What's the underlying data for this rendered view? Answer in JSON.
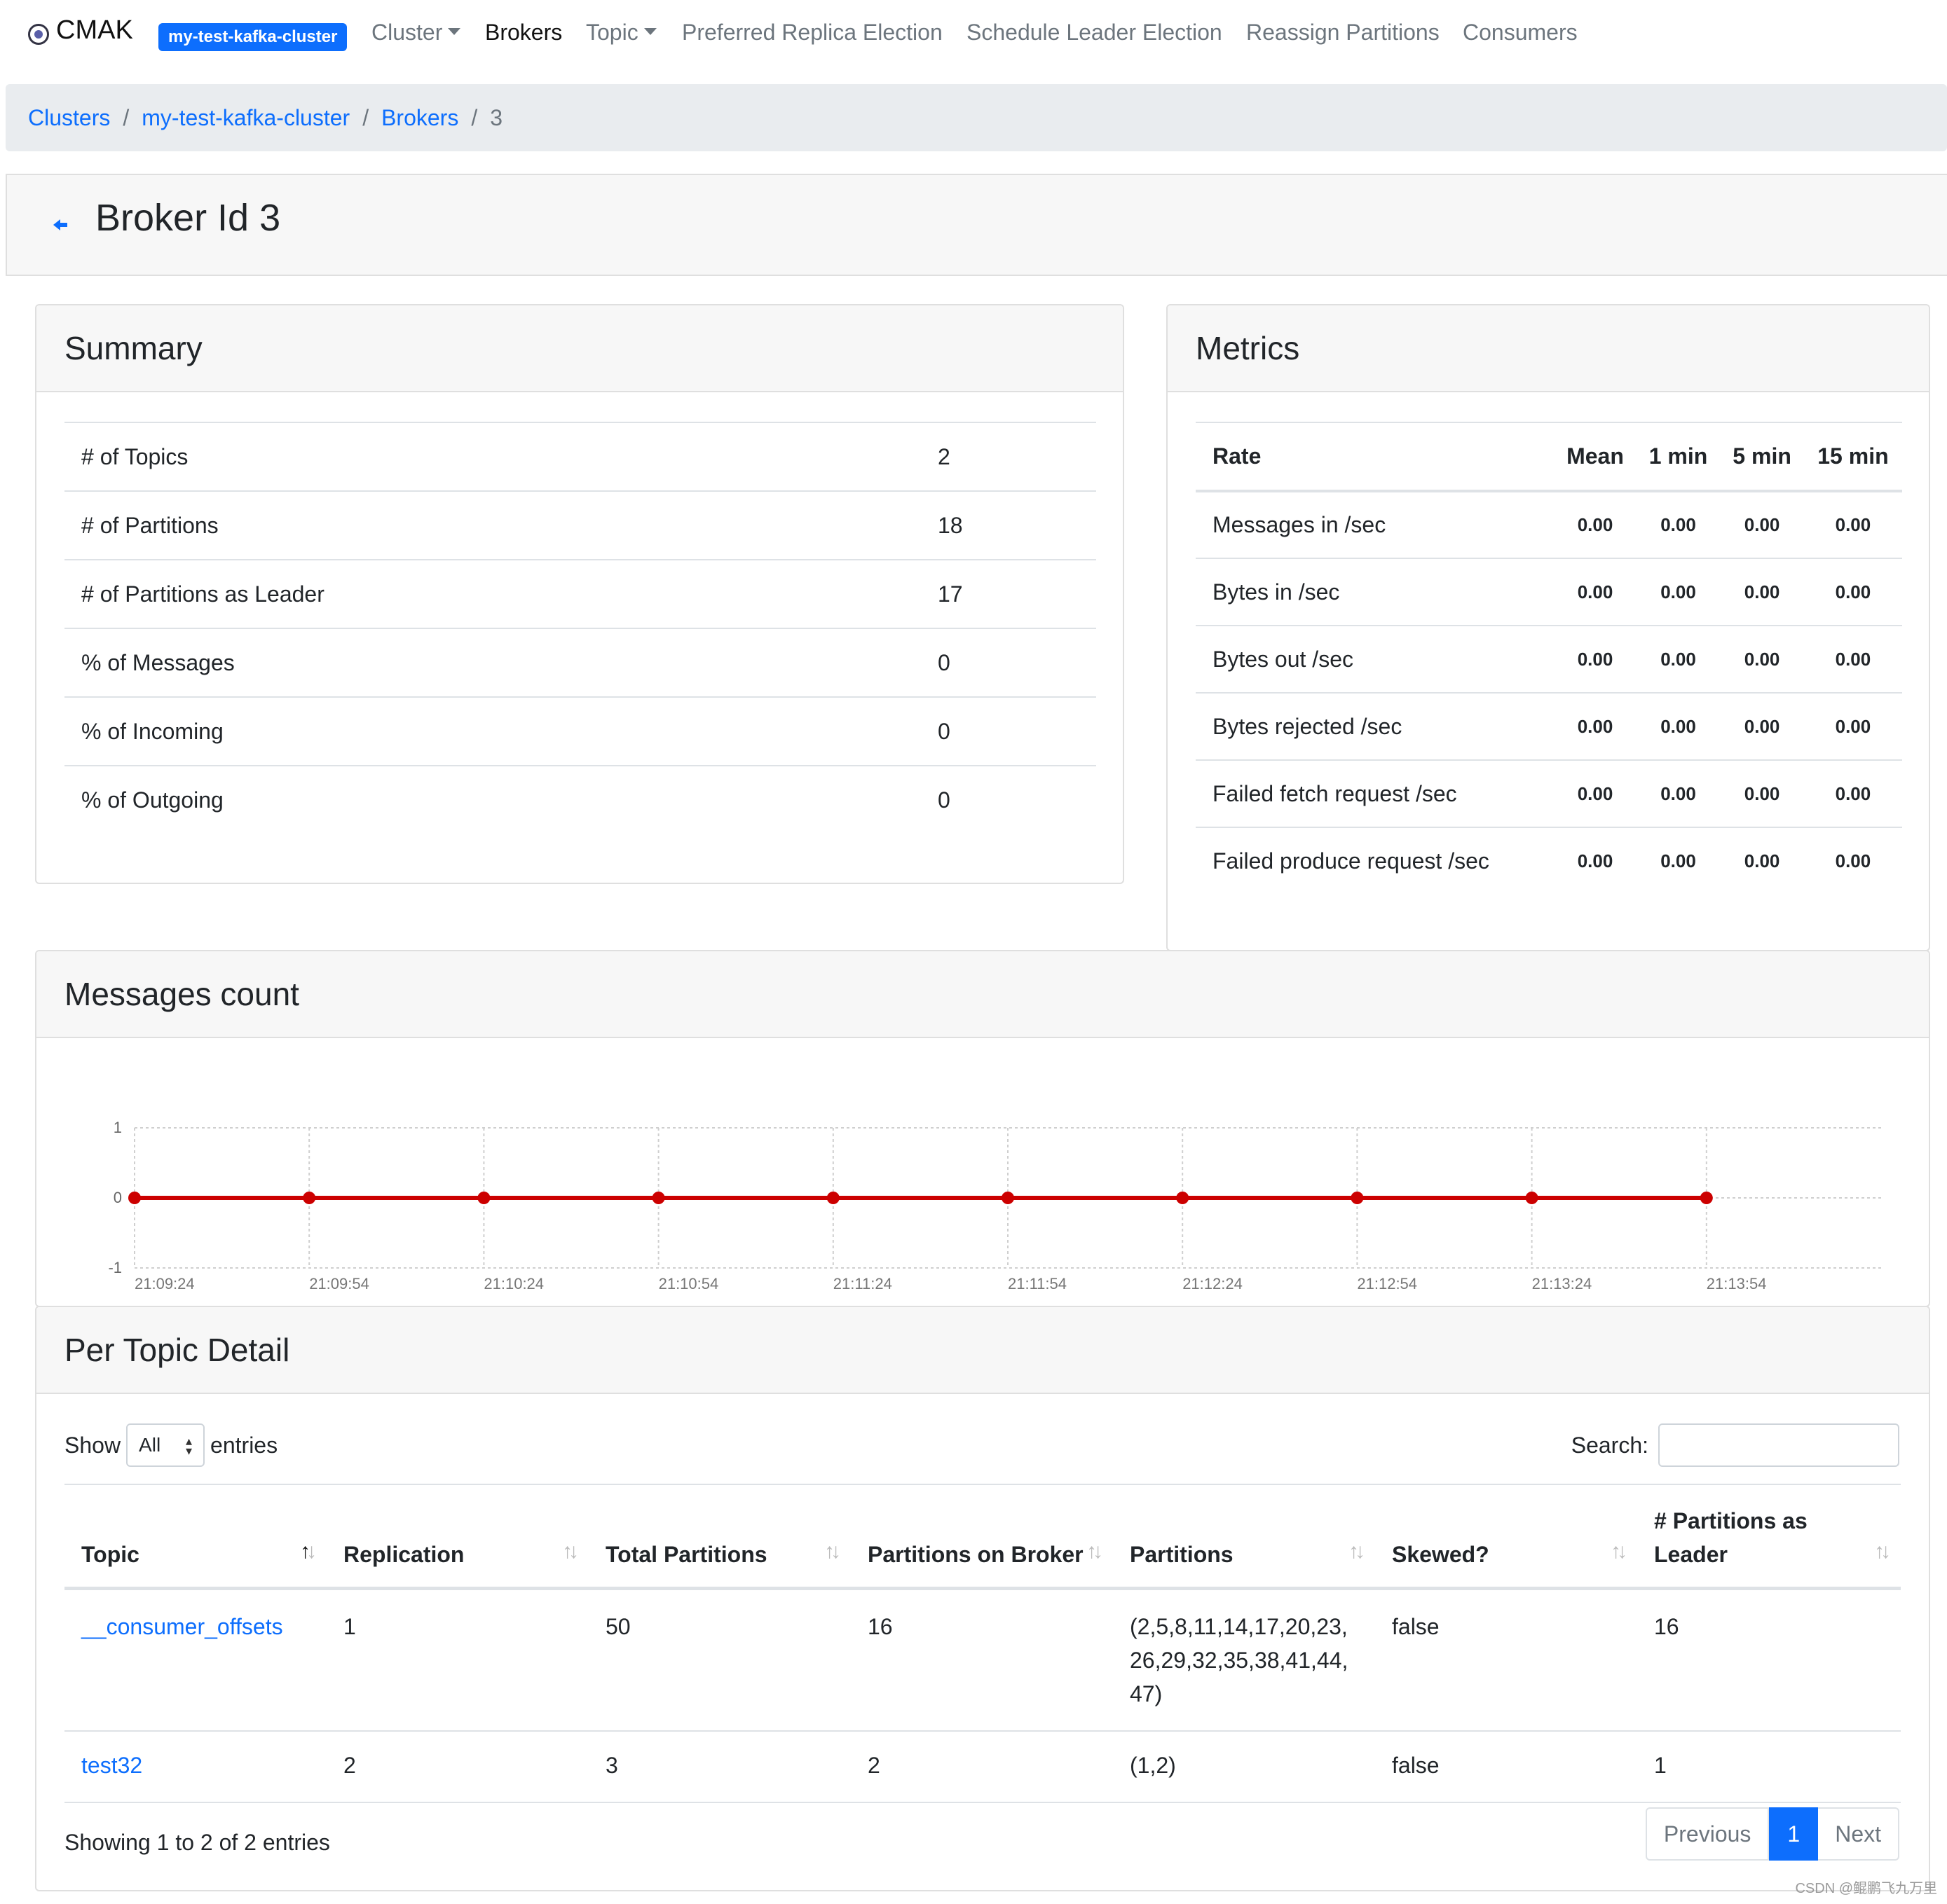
{
  "navbar": {
    "brand": "CMAK",
    "cluster_badge": "my-test-kafka-cluster",
    "items": [
      {
        "label": "Cluster",
        "dropdown": true
      },
      {
        "label": "Brokers",
        "active": true
      },
      {
        "label": "Topic",
        "dropdown": true
      },
      {
        "label": "Preferred Replica Election"
      },
      {
        "label": "Schedule Leader Election"
      },
      {
        "label": "Reassign Partitions"
      },
      {
        "label": "Consumers"
      }
    ]
  },
  "breadcrumb": {
    "items": [
      "Clusters",
      "my-test-kafka-cluster",
      "Brokers"
    ],
    "separator": "/",
    "current": "3"
  },
  "page": {
    "title": "Broker Id 3",
    "back_icon": "arrow-left-icon"
  },
  "summary": {
    "title": "Summary",
    "rows": [
      {
        "label": "# of Topics",
        "value": "2"
      },
      {
        "label": "# of Partitions",
        "value": "18"
      },
      {
        "label": "# of Partitions as Leader",
        "value": "17"
      },
      {
        "label": "% of Messages",
        "value": "0"
      },
      {
        "label": "% of Incoming",
        "value": "0"
      },
      {
        "label": "% of Outgoing",
        "value": "0"
      }
    ]
  },
  "metrics": {
    "title": "Metrics",
    "headers": [
      "Rate",
      "Mean",
      "1 min",
      "5 min",
      "15 min"
    ],
    "rows": [
      {
        "rate": "Messages in /sec",
        "mean": "0.00",
        "m1": "0.00",
        "m5": "0.00",
        "m15": "0.00"
      },
      {
        "rate": "Bytes in /sec",
        "mean": "0.00",
        "m1": "0.00",
        "m5": "0.00",
        "m15": "0.00"
      },
      {
        "rate": "Bytes out /sec",
        "mean": "0.00",
        "m1": "0.00",
        "m5": "0.00",
        "m15": "0.00"
      },
      {
        "rate": "Bytes rejected /sec",
        "mean": "0.00",
        "m1": "0.00",
        "m5": "0.00",
        "m15": "0.00"
      },
      {
        "rate": "Failed fetch request /sec",
        "mean": "0.00",
        "m1": "0.00",
        "m5": "0.00",
        "m15": "0.00"
      },
      {
        "rate": "Failed produce request /sec",
        "mean": "0.00",
        "m1": "0.00",
        "m5": "0.00",
        "m15": "0.00"
      }
    ]
  },
  "messages_count": {
    "title": "Messages count"
  },
  "chart_data": {
    "type": "line",
    "title": "",
    "xlabel": "",
    "ylabel": "",
    "x": [
      "21:09:24",
      "21:09:54",
      "21:10:24",
      "21:10:54",
      "21:11:24",
      "21:11:54",
      "21:12:24",
      "21:12:54",
      "21:13:24",
      "21:13:54"
    ],
    "series": [
      {
        "values": [
          0,
          0,
          0,
          0,
          0,
          0,
          0,
          0,
          0,
          0
        ],
        "color": "#cc0000"
      }
    ],
    "ylim": [
      -1,
      1
    ],
    "yticks": [
      "1",
      "0",
      "-1"
    ],
    "grid": true,
    "grid_style": "dashed"
  },
  "per_topic": {
    "title": "Per Topic Detail",
    "show_label": "Show",
    "entries_label": "entries",
    "length_value": "All",
    "search_label": "Search:",
    "search_value": "",
    "columns": [
      "Topic",
      "Replication",
      "Total Partitions",
      "Partitions on Broker",
      "Partitions",
      "Skewed?",
      "# Partitions as Leader"
    ],
    "sorted_column": "Topic",
    "rows": [
      {
        "topic": "__consumer_offsets",
        "replication": "1",
        "total_partitions": "50",
        "partitions_on_broker": "16",
        "partitions": "(2,5,8,11,14,17,20,23,26,29,32,35,38,41,44,47)",
        "skewed": "false",
        "partitions_as_leader": "16"
      },
      {
        "topic": "test32",
        "replication": "2",
        "total_partitions": "3",
        "partitions_on_broker": "2",
        "partitions": "(1,2)",
        "skewed": "false",
        "partitions_as_leader": "1"
      }
    ],
    "info": "Showing 1 to 2 of 2 entries",
    "pagination": {
      "previous": "Previous",
      "current": "1",
      "next": "Next"
    }
  },
  "watermark": "CSDN @鲲鹏飞九万里",
  "colors": {
    "accent": "#0d6efd",
    "series": "#cc0000",
    "header_bg": "#f7f7f7",
    "breadcrumb_bg": "#e9ecef"
  }
}
